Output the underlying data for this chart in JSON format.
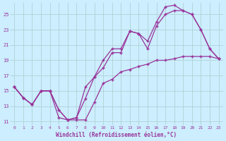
{
  "xlabel": "Windchill (Refroidissement éolien,°C)",
  "bg_color": "#cceeff",
  "grid_color": "#aacccc",
  "line_color": "#993399",
  "marker": "+",
  "xlim": [
    -0.5,
    23.5
  ],
  "ylim": [
    10.5,
    26.5
  ],
  "xticks": [
    0,
    1,
    2,
    3,
    4,
    5,
    6,
    7,
    8,
    9,
    10,
    11,
    12,
    13,
    14,
    15,
    16,
    17,
    18,
    19,
    20,
    21,
    22,
    23
  ],
  "yticks": [
    11,
    13,
    15,
    17,
    19,
    21,
    23,
    25
  ],
  "line1_x": [
    0,
    1,
    2,
    3,
    4,
    5,
    6,
    7,
    8,
    9,
    10,
    11,
    12,
    13,
    14,
    15,
    16,
    17,
    18,
    19,
    20,
    21,
    22,
    23
  ],
  "line1_y": [
    15.5,
    14.1,
    13.2,
    15.0,
    15.0,
    11.5,
    11.2,
    11.2,
    11.2,
    13.5,
    16.0,
    16.5,
    17.5,
    17.8,
    18.2,
    18.5,
    19.0,
    19.0,
    19.2,
    19.5,
    19.5,
    19.5,
    19.5,
    19.2
  ],
  "line2_x": [
    0,
    1,
    2,
    3,
    4,
    5,
    6,
    7,
    8,
    9,
    10,
    11,
    12,
    13,
    14,
    15,
    16,
    17,
    18,
    19,
    20,
    21,
    22,
    23
  ],
  "line2_y": [
    15.5,
    14.1,
    13.2,
    15.0,
    15.0,
    12.5,
    11.2,
    11.5,
    15.5,
    16.8,
    19.0,
    20.5,
    20.5,
    22.8,
    22.5,
    21.5,
    24.0,
    26.0,
    26.2,
    25.5,
    25.0,
    23.0,
    20.5,
    19.2
  ],
  "line3_x": [
    0,
    1,
    2,
    3,
    4,
    5,
    6,
    7,
    8,
    9,
    10,
    11,
    12,
    13,
    14,
    15,
    16,
    17,
    18,
    19,
    20,
    21,
    22,
    23
  ],
  "line3_y": [
    15.5,
    14.1,
    13.2,
    15.0,
    15.0,
    12.5,
    11.2,
    11.5,
    14.0,
    16.8,
    18.0,
    20.0,
    20.0,
    22.8,
    22.5,
    20.5,
    23.5,
    25.0,
    25.5,
    25.5,
    25.0,
    23.0,
    20.5,
    19.2
  ]
}
